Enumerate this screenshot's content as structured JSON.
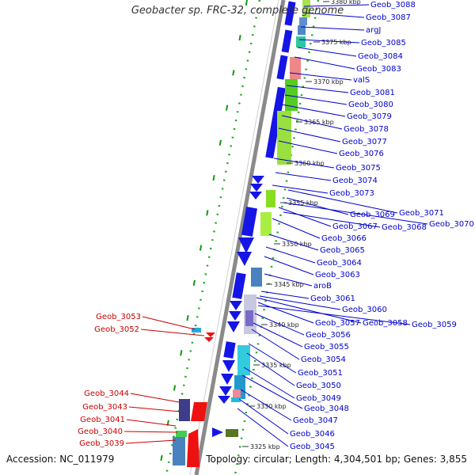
{
  "title": "Geobacter sp. FRC-32, complete genome",
  "accession": "Accession: NC_011979",
  "topology": "Topology: circular; Length: 4,304,501 bp; Genes: 3,855",
  "colors": {
    "forward_label": "#0000cc",
    "reverse_label": "#cc0000",
    "forward_gene": "#1515e6",
    "reverse_gene": "#ee1111",
    "backbone": "#8a8a8a",
    "dots": "#22aa22"
  },
  "ticks": [
    "3380 kbp",
    "3375 kbp",
    "3370 kbp",
    "3365 kbp",
    "3360 kbp",
    "3355 kbp",
    "3350 kbp",
    "3345 kbp",
    "3340 kbp",
    "3335 kbp",
    "3330 kbp",
    "3325 kbp"
  ],
  "forward_labels": [
    "Geob_3088",
    "Geob_3087",
    "argJ",
    "Geob_3085",
    "Geob_3084",
    "Geob_3083",
    "valS",
    "Geob_3081",
    "Geob_3080",
    "Geob_3079",
    "Geob_3078",
    "Geob_3077",
    "Geob_3076",
    "Geob_3075",
    "Geob_3074",
    "Geob_3073",
    "Geob_3071",
    "Geob_3069",
    "Geob_3070",
    "Geob_3067",
    "Geob_3068",
    "Geob_3066",
    "Geob_3065",
    "Geob_3064",
    "Geob_3063",
    "aroB",
    "Geob_3061",
    "Geob_3060",
    "Geob_3057",
    "Geob_3058",
    "Geob_3059",
    "Geob_3056",
    "Geob_3055",
    "Geob_3054",
    "Geob_3051",
    "Geob_3050",
    "Geob_3049",
    "Geob_3048",
    "Geob_3047",
    "Geob_3046",
    "Geob_3045"
  ],
  "reverse_labels": [
    "Geob_3053",
    "Geob_3052",
    "Geob_3044",
    "Geob_3043",
    "Geob_3041",
    "Geob_3040",
    "Geob_3039"
  ]
}
